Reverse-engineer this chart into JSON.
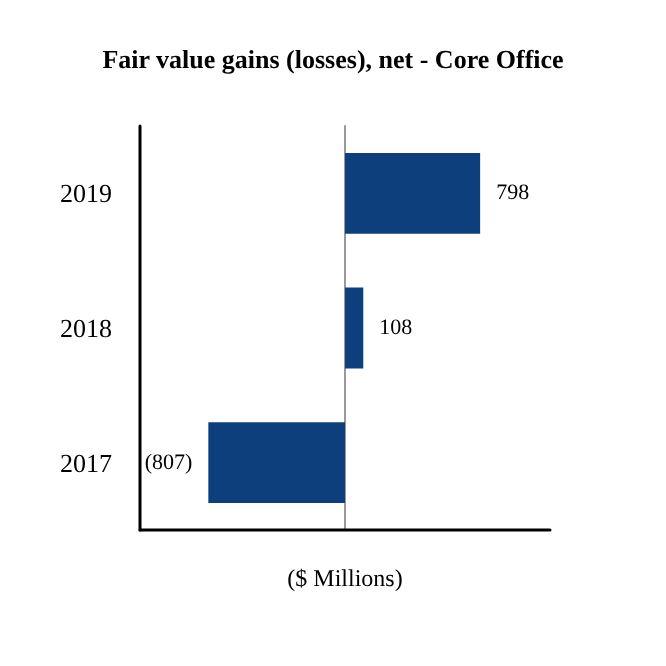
{
  "chart_data": {
    "type": "bar",
    "orientation": "horizontal",
    "title": "Fair value gains (losses), net - Core Office",
    "xlabel": "($ Millions)",
    "categories": [
      "2019",
      "2018",
      "2017"
    ],
    "values": [
      798,
      108,
      -807
    ],
    "value_labels": [
      "798",
      "108",
      "(807)"
    ],
    "color": "#0d3f7c",
    "tick_labels": "y",
    "grid": false
  }
}
